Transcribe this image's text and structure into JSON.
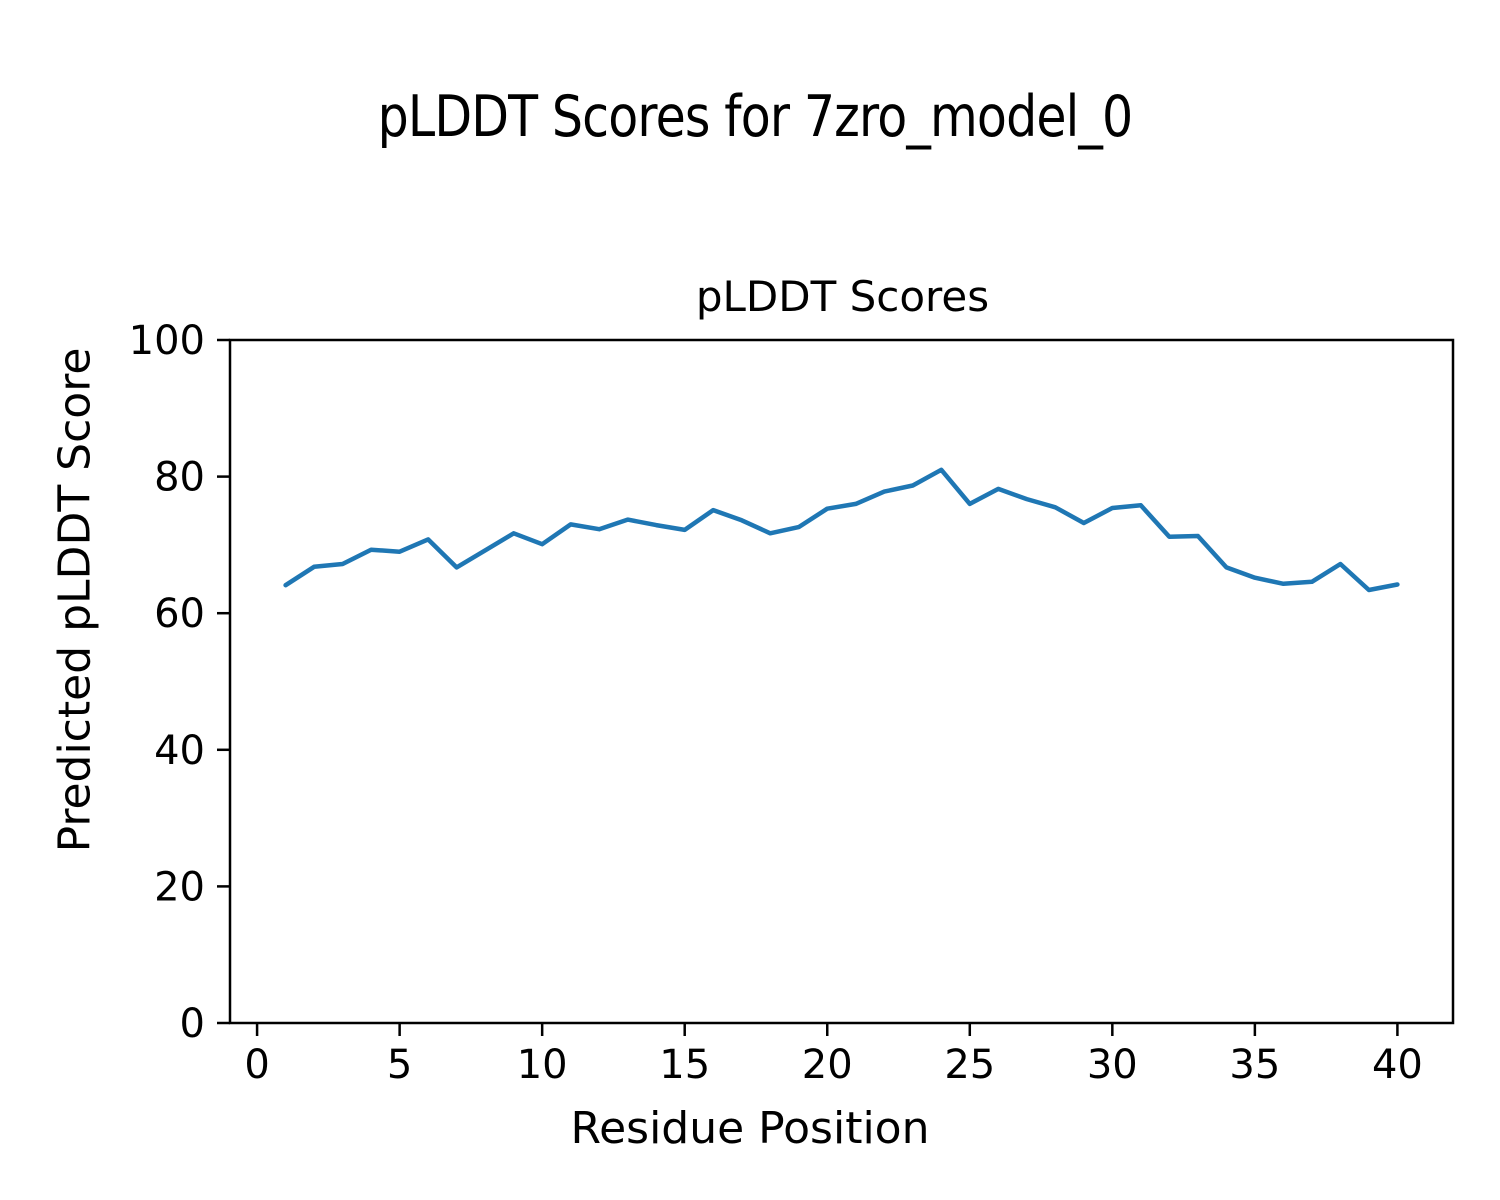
{
  "figure": {
    "title": "pLDDT Scores for 7zro_model_0",
    "background": "#ffffff",
    "axis_color": "#000000"
  },
  "chart_data": {
    "type": "line",
    "title": "pLDDT Scores",
    "xlabel": "Residue Position",
    "ylabel": "Predicted pLDDT Score",
    "x": [
      1,
      2,
      3,
      4,
      5,
      6,
      7,
      8,
      9,
      10,
      11,
      12,
      13,
      14,
      15,
      16,
      17,
      18,
      19,
      20,
      21,
      22,
      23,
      24,
      25,
      26,
      27,
      28,
      29,
      30,
      31,
      32,
      33,
      34,
      35,
      36,
      37,
      38,
      39,
      40
    ],
    "series": [
      {
        "name": "pLDDT",
        "color": "#1f77b4",
        "values": [
          64.1,
          66.8,
          67.2,
          69.3,
          69.0,
          70.8,
          66.7,
          69.2,
          71.7,
          70.1,
          73.0,
          72.3,
          73.7,
          72.9,
          72.2,
          75.1,
          73.6,
          71.7,
          72.6,
          75.3,
          76.0,
          77.8,
          78.7,
          81.0,
          76.0,
          78.2,
          76.7,
          75.5,
          73.2,
          75.4,
          75.8,
          71.2,
          71.3,
          66.7,
          65.2,
          64.3,
          64.6,
          67.2,
          63.4,
          64.2
        ]
      }
    ],
    "xlim": [
      -0.95,
      41.95
    ],
    "ylim": [
      0,
      100
    ],
    "x_ticks": [
      0,
      5,
      10,
      15,
      20,
      25,
      30,
      35,
      40
    ],
    "y_ticks": [
      0,
      20,
      40,
      60,
      80,
      100
    ],
    "grid": false,
    "legend": "none"
  }
}
